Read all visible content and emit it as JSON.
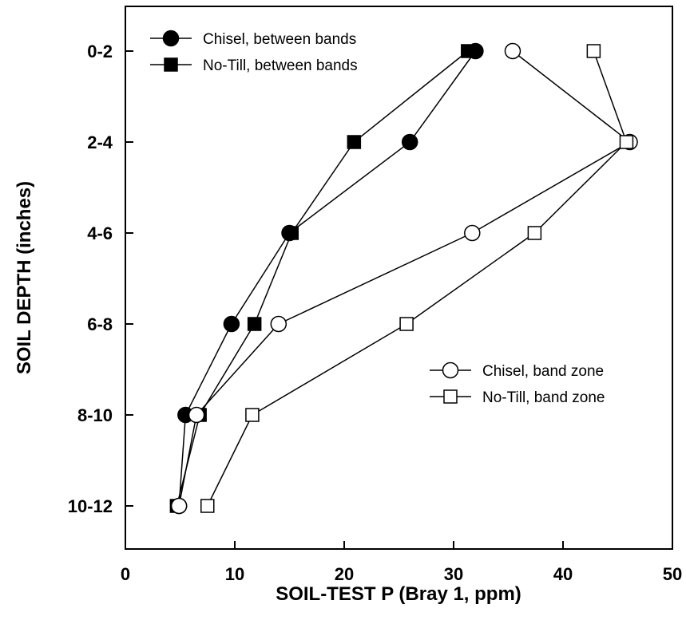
{
  "chart_data": {
    "type": "line",
    "title": "",
    "xlabel": "SOIL-TEST P (Bray 1, ppm)",
    "ylabel": "SOIL DEPTH (inches)",
    "xlim": [
      0,
      50
    ],
    "x_ticks": [
      "0",
      "10",
      "20",
      "30",
      "40",
      "50"
    ],
    "x_tick_values": [
      0,
      10,
      20,
      30,
      40,
      50
    ],
    "categories": [
      "0-2",
      "2-4",
      "4-6",
      "6-8",
      "8-10",
      "10-12"
    ],
    "grid": false,
    "series": [
      {
        "name": "Chisel, between bands",
        "marker": "circle",
        "fill": "#000000",
        "values": [
          32.0,
          26.0,
          15.0,
          9.7,
          5.5,
          4.9
        ]
      },
      {
        "name": "No-Till, between bands",
        "marker": "square",
        "fill": "#000000",
        "values": [
          31.3,
          20.9,
          15.2,
          11.8,
          6.8,
          4.7
        ]
      },
      {
        "name": "Chisel, band zone",
        "marker": "circle",
        "fill": "#ffffff",
        "values": [
          35.4,
          46.1,
          31.7,
          14.0,
          6.5,
          4.9
        ]
      },
      {
        "name": "No-Till, band zone",
        "marker": "square",
        "fill": "#ffffff",
        "values": [
          42.8,
          45.8,
          37.4,
          25.7,
          11.6,
          7.5
        ]
      }
    ],
    "legends": [
      {
        "position": "top-left",
        "series_index": [
          0,
          1
        ]
      },
      {
        "position": "center-right",
        "series_index": [
          2,
          3
        ]
      }
    ]
  }
}
